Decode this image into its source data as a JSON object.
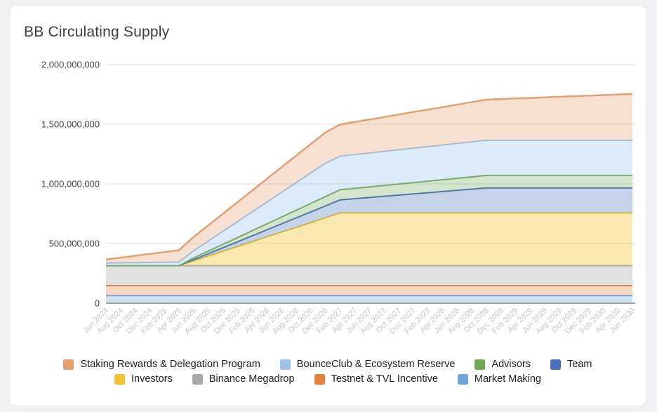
{
  "card": {
    "title": "BB Circulating Supply"
  },
  "chart_data": {
    "type": "area",
    "stacked": true,
    "title": "BB Circulating Supply",
    "values_unit": "millions_of_BB",
    "ylim_millions": [
      0,
      2000
    ],
    "grid": true,
    "y_ticks": [
      {
        "label": "0",
        "value": 0
      },
      {
        "label": "500,000,000",
        "value": 500
      },
      {
        "label": "1,000,000,000",
        "value": 1000
      },
      {
        "label": "1,500,000,000",
        "value": 1500
      },
      {
        "label": "2,000,000,000",
        "value": 2000
      }
    ],
    "x_labels": [
      "Jun 2024",
      "Aug 2024",
      "Oct 2024",
      "Dec 2024",
      "Feb 2025",
      "Apr 2025",
      "Jun 2025",
      "Aug 2025",
      "Oct 2025",
      "Dec 2025",
      "Feb 2026",
      "Apr 2026",
      "Jun 2026",
      "Aug 2026",
      "Oct 2026",
      "Dec 2026",
      "Feb 2027",
      "Apr 2027",
      "Jun 2027",
      "Aug 2027",
      "Oct 2027",
      "Dec 2027",
      "Feb 2028",
      "Apr 2028",
      "Jun 2028",
      "Aug 2028",
      "Oct 2028",
      "Dec 2028",
      "Feb 2029",
      "Apr 2029",
      "Jun 2029",
      "Aug 2029",
      "Oct 2029",
      "Dec 2029",
      "Feb 2030",
      "Apr 2030",
      "Jun 2030"
    ],
    "series": [
      {
        "key": "market_making",
        "name": "Market Making",
        "color": "#71a6db",
        "fill_opacity": 0.32,
        "values": [
          63,
          63,
          63,
          63,
          63,
          63,
          63,
          63,
          63,
          63,
          63,
          63,
          63,
          63,
          63,
          63,
          63,
          63,
          63,
          63,
          63,
          63,
          63,
          63,
          63,
          63,
          63,
          63,
          63,
          63,
          63,
          63,
          63,
          63,
          63,
          63,
          63
        ]
      },
      {
        "key": "testnet_tvl",
        "name": "Testnet & TVL Incentive",
        "color": "#e0813c",
        "fill_opacity": 0.3,
        "values": [
          84,
          84,
          84,
          84,
          84,
          84,
          84,
          84,
          84,
          84,
          84,
          84,
          84,
          84,
          84,
          84,
          84,
          84,
          84,
          84,
          84,
          84,
          84,
          84,
          84,
          84,
          84,
          84,
          84,
          84,
          84,
          84,
          84,
          84,
          84,
          84,
          84
        ]
      },
      {
        "key": "megadrop",
        "name": "Binance Megadrop",
        "color": "#a8a8a8",
        "fill_opacity": 0.34,
        "values": [
          168,
          168,
          168,
          168,
          168,
          168,
          168,
          168,
          168,
          168,
          168,
          168,
          168,
          168,
          168,
          168,
          168,
          168,
          168,
          168,
          168,
          168,
          168,
          168,
          168,
          168,
          168,
          168,
          168,
          168,
          168,
          168,
          168,
          168,
          168,
          168,
          168
        ]
      },
      {
        "key": "investors",
        "name": "Investors",
        "color": "#f2c233",
        "fill_opacity": 0.38,
        "values": [
          0,
          0,
          0,
          0,
          0,
          0,
          40,
          80,
          120,
          160,
          200,
          240,
          280,
          320,
          360,
          400,
          441,
          441,
          441,
          441,
          441,
          441,
          441,
          441,
          441,
          441,
          441,
          441,
          441,
          441,
          441,
          441,
          441,
          441,
          441,
          441,
          441
        ]
      },
      {
        "key": "team",
        "name": "Team",
        "color": "#4c73b9",
        "fill_opacity": 0.32,
        "values": [
          0,
          0,
          0,
          0,
          0,
          0,
          10,
          20,
          30,
          40,
          50,
          60,
          70,
          80,
          90,
          100,
          110,
          120,
          130,
          140,
          150,
          160,
          170,
          180,
          190,
          200,
          210,
          210,
          210,
          210,
          210,
          210,
          210,
          210,
          210,
          210,
          210
        ]
      },
      {
        "key": "advisors",
        "name": "Advisors",
        "color": "#73a656",
        "fill_opacity": 0.3,
        "values": [
          0,
          0,
          0,
          0,
          0,
          0,
          15,
          22,
          29,
          36,
          43,
          50,
          57,
          64,
          71,
          78,
          85,
          87,
          89,
          91,
          93,
          95,
          97,
          99,
          101,
          103,
          105,
          105,
          105,
          105,
          105,
          105,
          105,
          105,
          105,
          105,
          105
        ]
      },
      {
        "key": "bounceclub",
        "name": "BounceClub & Ecosystem Reserve",
        "color": "#9ec3e7",
        "fill_opacity": 0.35,
        "values": [
          22,
          23,
          25,
          26,
          28,
          30,
          60,
          84,
          109,
          133,
          158,
          182,
          207,
          231,
          256,
          280,
          281,
          283,
          284,
          285,
          287,
          288,
          289,
          290,
          292,
          293,
          294,
          294,
          294,
          294,
          294,
          294,
          294,
          294,
          294,
          294,
          294
        ]
      },
      {
        "key": "staking",
        "name": "Staking Rewards & Delegation Program",
        "color": "#e4a072",
        "fill_opacity": 0.32,
        "values": [
          30,
          44,
          58,
          72,
          86,
          100,
          116,
          132,
          147,
          163,
          179,
          195,
          211,
          226,
          242,
          258,
          265,
          273,
          280,
          288,
          295,
          303,
          310,
          318,
          325,
          333,
          341,
          346,
          351,
          355,
          360,
          365,
          370,
          374,
          379,
          384,
          389
        ]
      }
    ],
    "legend_rows": [
      [
        "staking",
        "bounceclub",
        "advisors",
        "team"
      ],
      [
        "investors",
        "megadrop",
        "testnet_tvl",
        "market_making"
      ]
    ],
    "colors": {
      "grid": "#e4e4e4",
      "axis": "#98a0aa",
      "y_tick_text": "#454545",
      "x_tick_text": "#c4c6c8",
      "title_text": "#3e3e3e"
    }
  }
}
